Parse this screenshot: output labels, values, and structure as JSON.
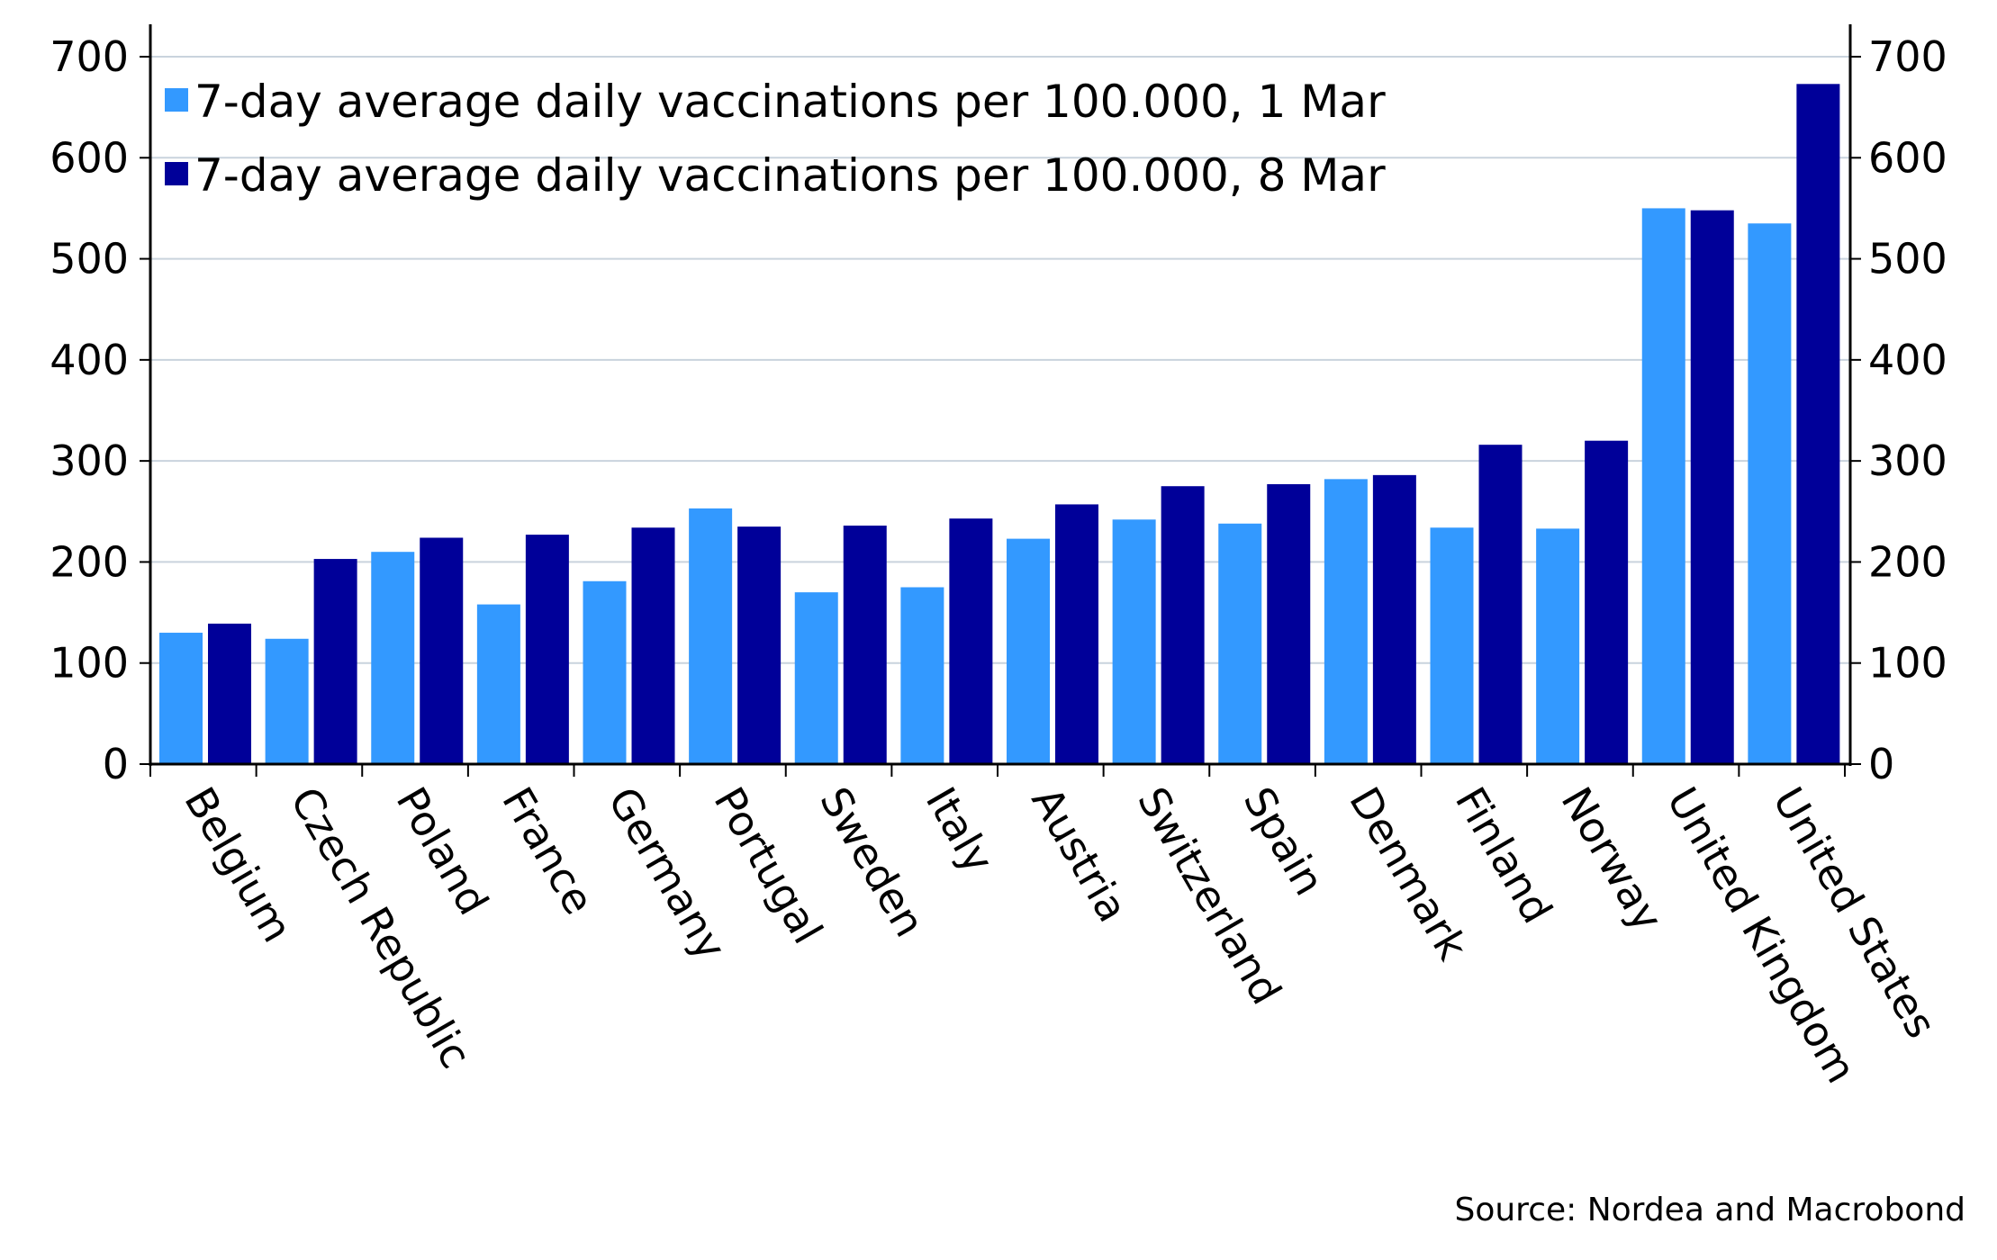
{
  "chart_data": {
    "type": "bar",
    "categories": [
      "Belgium",
      "Czech Republic",
      "Poland",
      "France",
      "Germany",
      "Portugal",
      "Sweden",
      "Italy",
      "Austria",
      "Switzerland",
      "Spain",
      "Denmark",
      "Finland",
      "Norway",
      "United Kingdom",
      "United States"
    ],
    "series": [
      {
        "name": "7-day average daily vaccinations per 100.000, 1 Mar",
        "color": "#3399ff",
        "values": [
          130,
          124,
          210,
          158,
          181,
          253,
          170,
          175,
          223,
          242,
          238,
          282,
          234,
          233,
          550,
          535
        ]
      },
      {
        "name": "7-day average daily vaccinations per 100.000, 8 Mar",
        "color": "#000099",
        "values": [
          139,
          203,
          224,
          227,
          234,
          235,
          236,
          243,
          257,
          275,
          277,
          286,
          316,
          320,
          548,
          673
        ]
      }
    ],
    "ylim": [
      0,
      700
    ],
    "yticks": [
      "0",
      "100",
      "200",
      "300",
      "400",
      "500",
      "600",
      "700"
    ],
    "yticks_right": [
      "0",
      "100",
      "200",
      "300",
      "400",
      "500",
      "600",
      "700"
    ],
    "grid": true,
    "legend_position": "top-left",
    "source": "Source: Nordea and Macrobond"
  }
}
